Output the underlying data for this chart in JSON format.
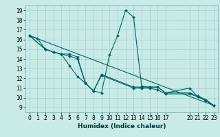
{
  "xlabel": "Humidex (Indice chaleur)",
  "background_color": "#c8ebe8",
  "grid_color": "#a8d4d0",
  "line_color": "#006060",
  "xlim": [
    -0.5,
    23.5
  ],
  "ylim": [
    8.5,
    19.5
  ],
  "xticks": [
    0,
    1,
    2,
    3,
    4,
    5,
    6,
    7,
    8,
    9,
    10,
    11,
    12,
    13,
    14,
    15,
    16,
    17,
    20,
    21,
    22,
    23
  ],
  "yticks": [
    9,
    10,
    11,
    12,
    13,
    14,
    15,
    16,
    17,
    18,
    19
  ],
  "lines": [
    {
      "x": [
        0,
        1,
        2,
        3,
        4,
        5,
        6,
        7,
        8,
        9,
        10,
        11,
        12,
        13,
        14,
        15,
        16,
        17,
        20,
        21,
        22,
        23
      ],
      "y": [
        16.4,
        16.1,
        15.0,
        14.7,
        14.5,
        13.3,
        12.2,
        11.5,
        10.7,
        10.5,
        14.4,
        16.4,
        19.0,
        18.3,
        11.2,
        11.1,
        11.1,
        10.5,
        11.0,
        10.1,
        9.8,
        9.2
      ],
      "has_markers": true
    },
    {
      "x": [
        0,
        2,
        3,
        4,
        5,
        6,
        7,
        8,
        9,
        13,
        14,
        15,
        16,
        17,
        20,
        21,
        22,
        23
      ],
      "y": [
        16.4,
        15.0,
        14.7,
        14.5,
        14.5,
        14.2,
        11.5,
        10.7,
        12.4,
        11.1,
        11.1,
        11.1,
        11.1,
        10.5,
        10.5,
        10.2,
        9.8,
        9.2
      ],
      "has_markers": true
    },
    {
      "x": [
        0,
        2,
        3,
        4,
        5,
        6,
        7,
        8,
        9,
        13,
        14,
        15,
        16,
        17,
        20,
        21,
        22,
        23
      ],
      "y": [
        16.4,
        15.0,
        14.7,
        14.5,
        14.3,
        14.0,
        11.5,
        10.7,
        12.3,
        11.0,
        11.0,
        11.0,
        10.8,
        10.4,
        10.4,
        10.1,
        9.7,
        9.2
      ],
      "has_markers": true
    },
    {
      "x": [
        0,
        23
      ],
      "y": [
        16.4,
        9.2
      ],
      "has_markers": false
    }
  ]
}
